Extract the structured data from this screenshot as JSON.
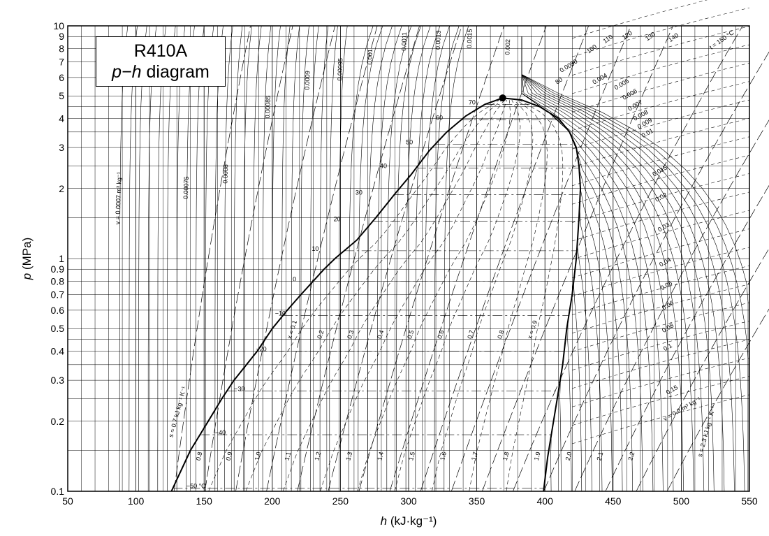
{
  "chart_data": {
    "type": "line",
    "title": "R410A",
    "subtitle_var": "p−h",
    "subtitle_word": "diagram",
    "xlabel_var": "h",
    "xlabel_unit": "(kJ·kg⁻¹)",
    "ylabel_var": "p",
    "ylabel_unit": "(MPa)",
    "xlim": [
      50,
      550
    ],
    "ylim": [
      0.1,
      10
    ],
    "yscale": "log",
    "grid": true,
    "x_ticks": [
      "50",
      "100",
      "150",
      "200",
      "250",
      "300",
      "350",
      "400",
      "450",
      "500",
      "550"
    ],
    "y_ticks": [
      {
        "v": 0.1,
        "label": "0.1"
      },
      {
        "v": 0.2,
        "label": "0.2"
      },
      {
        "v": 0.3,
        "label": "0.3"
      },
      {
        "v": 0.4,
        "label": "0.4"
      },
      {
        "v": 0.5,
        "label": "0.5"
      },
      {
        "v": 0.6,
        "label": "0.6"
      },
      {
        "v": 0.7,
        "label": "0.7"
      },
      {
        "v": 0.8,
        "label": "0.8"
      },
      {
        "v": 0.9,
        "label": "0.9"
      },
      {
        "v": 1,
        "label": "1"
      },
      {
        "v": 2,
        "label": "2"
      },
      {
        "v": 3,
        "label": "3"
      },
      {
        "v": 4,
        "label": "4"
      },
      {
        "v": 5,
        "label": "5"
      },
      {
        "v": 6,
        "label": "6"
      },
      {
        "v": 7,
        "label": "7"
      },
      {
        "v": 8,
        "label": "8"
      },
      {
        "v": 9,
        "label": "9"
      },
      {
        "v": 10,
        "label": "10"
      }
    ],
    "saturated_liquid": [
      [
        126,
        0.1
      ],
      [
        140,
        0.15
      ],
      [
        153,
        0.2
      ],
      [
        163,
        0.25
      ],
      [
        172,
        0.3
      ],
      [
        189,
        0.4
      ],
      [
        200,
        0.5
      ],
      [
        211,
        0.6
      ],
      [
        221,
        0.7
      ],
      [
        230,
        0.8
      ],
      [
        238,
        0.9
      ],
      [
        246,
        1.0
      ],
      [
        262,
        1.2
      ],
      [
        276,
        1.5
      ],
      [
        290,
        1.9
      ],
      [
        302,
        2.3
      ],
      [
        315,
        2.9
      ],
      [
        328,
        3.5
      ],
      [
        342,
        4.1
      ],
      [
        356,
        4.6
      ],
      [
        369,
        4.9
      ]
    ],
    "saturated_vapor": [
      [
        369,
        4.9
      ],
      [
        383,
        4.8
      ],
      [
        396,
        4.5
      ],
      [
        410,
        4.0
      ],
      [
        418,
        3.5
      ],
      [
        423,
        3.0
      ],
      [
        425,
        2.5
      ],
      [
        426,
        2.0
      ],
      [
        425,
        1.5
      ],
      [
        423,
        1.0
      ],
      [
        420,
        0.7
      ],
      [
        416,
        0.5
      ],
      [
        413,
        0.35
      ],
      [
        409,
        0.25
      ],
      [
        405,
        0.18
      ],
      [
        402,
        0.14
      ],
      [
        399,
        0.1
      ]
    ],
    "critical_point": {
      "h": 369,
      "p": 4.9
    },
    "isotherm_labels": [
      {
        "t": "−50 °C",
        "h": 137,
        "p": 0.103
      },
      {
        "t": "−40",
        "h": 158,
        "p": 0.175
      },
      {
        "t": "−30",
        "h": 172,
        "p": 0.27
      },
      {
        "t": "−20",
        "h": 188,
        "p": 0.4
      },
      {
        "t": "−10",
        "h": 202,
        "p": 0.57
      },
      {
        "t": "0",
        "h": 215,
        "p": 0.8
      },
      {
        "t": "10",
        "h": 229,
        "p": 1.08
      },
      {
        "t": "20",
        "h": 245,
        "p": 1.45
      },
      {
        "t": "30",
        "h": 261,
        "p": 1.88
      },
      {
        "t": "40",
        "h": 279,
        "p": 2.45
      },
      {
        "t": "50",
        "h": 298,
        "p": 3.1
      },
      {
        "t": "60",
        "h": 320,
        "p": 3.95
      },
      {
        "t": "70",
        "h": 344,
        "p": 4.6
      }
    ],
    "quality_lines": [
      {
        "x": 0.1,
        "label": "x = 0.1"
      },
      {
        "x": 0.2,
        "label": "0.2"
      },
      {
        "x": 0.3,
        "label": "0.3"
      },
      {
        "x": 0.4,
        "label": "0.4"
      },
      {
        "x": 0.5,
        "label": "0.5"
      },
      {
        "x": 0.6,
        "label": "0.6"
      },
      {
        "x": 0.7,
        "label": "0.7"
      },
      {
        "x": 0.8,
        "label": "0.8"
      },
      {
        "x": 0.9,
        "label": "x = 0.9"
      }
    ],
    "entropy_labels": [
      {
        "t": "s = 0.7 kJ kg⁻¹ K⁻¹",
        "h": 127,
        "p": 0.17
      },
      {
        "t": "0.8",
        "h": 147,
        "p": 0.135
      },
      {
        "t": "0.9",
        "h": 169,
        "p": 0.135
      },
      {
        "t": "1.0",
        "h": 190,
        "p": 0.135
      },
      {
        "t": "1.1",
        "h": 212,
        "p": 0.135
      },
      {
        "t": "1.2",
        "h": 234,
        "p": 0.135
      },
      {
        "t": "1.3",
        "h": 257,
        "p": 0.135
      },
      {
        "t": "1.4",
        "h": 280,
        "p": 0.135
      },
      {
        "t": "1.5",
        "h": 303,
        "p": 0.135
      },
      {
        "t": "1.6",
        "h": 326,
        "p": 0.135
      },
      {
        "t": "1.7",
        "h": 349,
        "p": 0.135
      },
      {
        "t": "1.8",
        "h": 372,
        "p": 0.135
      },
      {
        "t": "1.9",
        "h": 395,
        "p": 0.135
      },
      {
        "t": "2.0",
        "h": 418,
        "p": 0.135
      },
      {
        "t": "2.1",
        "h": 441,
        "p": 0.135
      },
      {
        "t": "2.2",
        "h": 464,
        "p": 0.135
      },
      {
        "t": "s = 2.3 kJ kg⁻¹ K⁻¹",
        "h": 515,
        "p": 0.14
      }
    ],
    "volume_labels": [
      {
        "t": "v = 0.0007 m³ kg⁻¹",
        "h": 88,
        "p": 1.4
      },
      {
        "t": "0.00075",
        "h": 138,
        "p": 1.8
      },
      {
        "t": "0.0008",
        "h": 167,
        "p": 2.1
      },
      {
        "t": "0.00085",
        "h": 198,
        "p": 4.0
      },
      {
        "t": "0.0009",
        "h": 227,
        "p": 5.3
      },
      {
        "t": "0.00095",
        "h": 251,
        "p": 5.8
      },
      {
        "t": "0.001",
        "h": 273,
        "p": 6.8
      },
      {
        "t": "0.0011",
        "h": 298,
        "p": 7.8
      },
      {
        "t": "0.0013",
        "h": 323,
        "p": 7.9
      },
      {
        "t": "0.0015",
        "h": 346,
        "p": 8.0
      },
      {
        "t": "0.002",
        "h": 374,
        "p": 7.5
      },
      {
        "t": "0.003",
        "h": 412,
        "p": 6.3
      },
      {
        "t": "0.004",
        "h": 436,
        "p": 5.6
      },
      {
        "t": "0.005",
        "h": 452,
        "p": 5.3
      },
      {
        "t": "0.006",
        "h": 458,
        "p": 4.8
      },
      {
        "t": "0.007",
        "h": 462,
        "p": 4.3
      },
      {
        "t": "0.008",
        "h": 466,
        "p": 3.9
      },
      {
        "t": "0.009",
        "h": 469,
        "p": 3.6
      },
      {
        "t": "0.01",
        "h": 472,
        "p": 3.3
      },
      {
        "t": "0.015",
        "h": 480,
        "p": 2.25
      },
      {
        "t": "0.02",
        "h": 482,
        "p": 1.75
      },
      {
        "t": "0.03",
        "h": 484,
        "p": 1.3
      },
      {
        "t": "0.04",
        "h": 485,
        "p": 0.92
      },
      {
        "t": "0.05",
        "h": 486,
        "p": 0.73
      },
      {
        "t": "0.06",
        "h": 487,
        "p": 0.6
      },
      {
        "t": "0.08",
        "h": 487,
        "p": 0.48
      },
      {
        "t": "0.1",
        "h": 488,
        "p": 0.4
      },
      {
        "t": "0.15",
        "h": 490,
        "p": 0.26
      },
      {
        "t": "v = 0.2 m³ kg⁻¹",
        "h": 488,
        "p": 0.2
      }
    ],
    "superheat_labels": [
      {
        "t": "80",
        "h": 409,
        "p": 5.6
      },
      {
        "t": "90",
        "h": 420,
        "p": 6.7
      },
      {
        "t": "100",
        "h": 432,
        "p": 7.6
      },
      {
        "t": "110",
        "h": 444,
        "p": 8.4
      },
      {
        "t": "120",
        "h": 458,
        "p": 8.7
      },
      {
        "t": "130",
        "h": 475,
        "p": 8.6
      },
      {
        "t": "140",
        "h": 492,
        "p": 8.5
      },
      {
        "t": "t = 150 °C",
        "h": 522,
        "p": 7.9
      }
    ]
  }
}
